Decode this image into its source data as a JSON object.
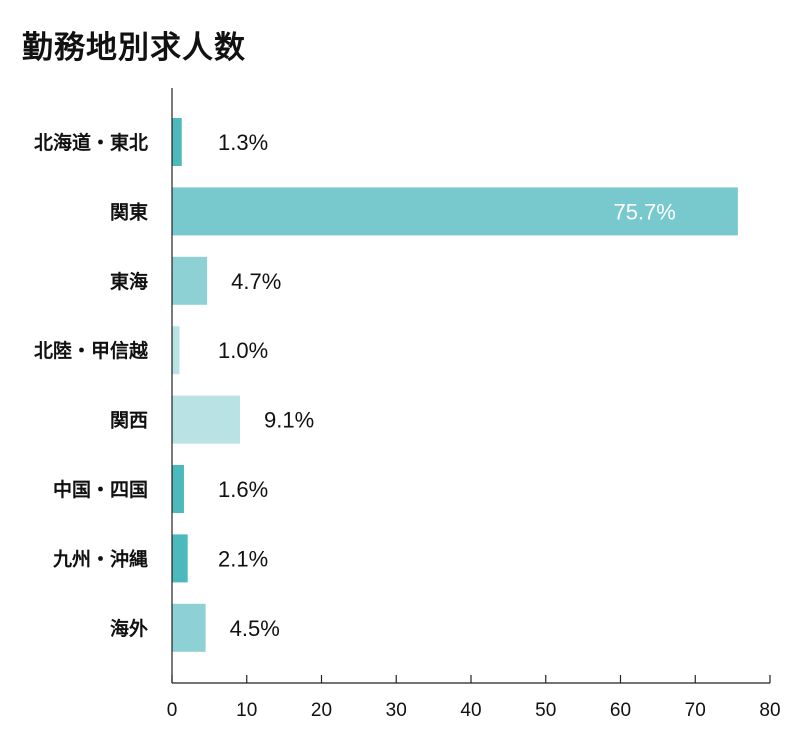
{
  "chart_data": {
    "type": "bar",
    "orientation": "horizontal",
    "title": "勤務地別求人数",
    "categories": [
      "北海道・東北",
      "関東",
      "東海",
      "北陸・甲信越",
      "関西",
      "中国・四国",
      "九州・沖縄",
      "海外"
    ],
    "values": [
      1.3,
      75.7,
      4.7,
      1.0,
      9.1,
      1.6,
      2.1,
      4.5
    ],
    "value_labels": [
      "1.3%",
      "75.7%",
      "4.7%",
      "1.0%",
      "9.1%",
      "1.6%",
      "2.1%",
      "4.5%"
    ],
    "colors": [
      "#4cb9bd",
      "#77c9cd",
      "#8dd1d4",
      "#b8e2e3",
      "#b8e2e3",
      "#4cb9bd",
      "#4cb9bd",
      "#8dd1d4"
    ],
    "xlim": [
      0,
      80
    ],
    "xticks": [
      0,
      10,
      20,
      30,
      40,
      50,
      60,
      70,
      80
    ],
    "xlabel": "",
    "ylabel": "",
    "grid": false,
    "legend": "none"
  }
}
